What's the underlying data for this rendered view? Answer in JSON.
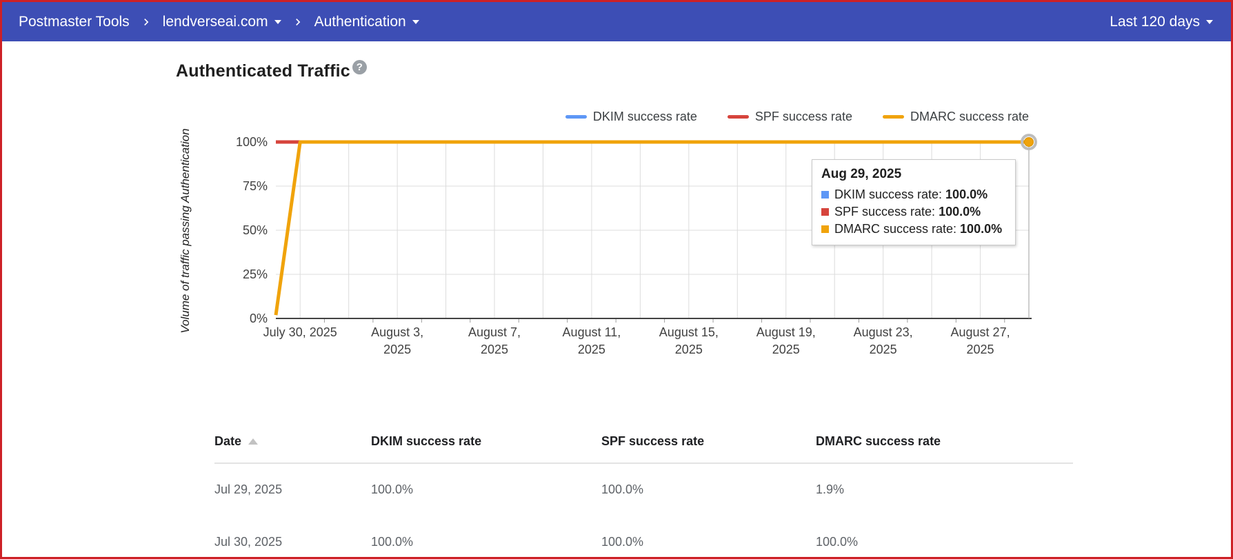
{
  "nav": {
    "breadcrumb": [
      {
        "label": "Postmaster Tools",
        "dropdown": false
      },
      {
        "label": "lendverseai.com",
        "dropdown": true
      },
      {
        "label": "Authentication",
        "dropdown": true
      }
    ],
    "date_range": "Last 120 days"
  },
  "page": {
    "title": "Authenticated Traffic",
    "help_icon": "?"
  },
  "chart_data": {
    "type": "line",
    "title": "Authenticated Traffic",
    "ylabel": "Volume of traffic passing\nAuthentication",
    "ylim": [
      0,
      100
    ],
    "y_ticks": [
      {
        "value": 0,
        "label": "0%"
      },
      {
        "value": 25,
        "label": "25%"
      },
      {
        "value": 50,
        "label": "50%"
      },
      {
        "value": 75,
        "label": "75%"
      },
      {
        "value": 100,
        "label": "100%"
      }
    ],
    "x_start_date": "Jul 29, 2025",
    "x_end_date": "Aug 29, 2025",
    "x_range_days": 31,
    "x_ticks": [
      {
        "day": 1,
        "label": "July 30, 2025"
      },
      {
        "day": 5,
        "label": "August 3,\n2025"
      },
      {
        "day": 9,
        "label": "August 7,\n2025"
      },
      {
        "day": 13,
        "label": "August 11,\n2025"
      },
      {
        "day": 17,
        "label": "August 15,\n2025"
      },
      {
        "day": 21,
        "label": "August 19,\n2025"
      },
      {
        "day": 25,
        "label": "August 23,\n2025"
      },
      {
        "day": 29,
        "label": "August 27,\n2025"
      }
    ],
    "grid": {
      "h_interval_pct": 25,
      "v_gridline_days": "odd days 1-31",
      "v_minor_tick_days": "even days 2-30"
    },
    "legend_position": "top-right",
    "series": [
      {
        "name": "DKIM success rate",
        "color": "#5e97f6",
        "points": [
          [
            0,
            100
          ],
          [
            31,
            100
          ]
        ]
      },
      {
        "name": "SPF success rate",
        "color": "#d6443c",
        "points": [
          [
            0,
            100
          ],
          [
            31,
            100
          ]
        ]
      },
      {
        "name": "DMARC success rate",
        "color": "#f0a30b",
        "points": [
          [
            0,
            1.9
          ],
          [
            1,
            100
          ],
          [
            31,
            100
          ]
        ]
      }
    ],
    "highlight_point": {
      "series": "DMARC success rate",
      "date": "Aug 29, 2025",
      "day": 31,
      "value": 100
    }
  },
  "tooltip": {
    "title": "Aug 29, 2025",
    "rows": [
      {
        "label": "DKIM success rate:",
        "value": "100.0%",
        "color": "#5e97f6"
      },
      {
        "label": "SPF success rate:",
        "value": "100.0%",
        "color": "#d6443c"
      },
      {
        "label": "DMARC success rate:",
        "value": "100.0%",
        "color": "#f0a30b"
      }
    ]
  },
  "table": {
    "columns": [
      "Date",
      "DKIM success rate",
      "SPF success rate",
      "DMARC success rate"
    ],
    "sort_column": "Date",
    "sort_ascending": true,
    "rows": [
      [
        "Jul 29, 2025",
        "100.0%",
        "100.0%",
        "1.9%"
      ],
      [
        "Jul 30, 2025",
        "100.0%",
        "100.0%",
        "100.0%"
      ]
    ]
  },
  "colors": {
    "header_bg": "#3d4eb5",
    "frame_border": "#cd2026",
    "grid": "#dcdcdc",
    "axis_baseline": "#424242",
    "minor_tick": "#9e9e9e",
    "crosshair": "#9e9e9e",
    "marker_halo": "#bdbdbd"
  }
}
